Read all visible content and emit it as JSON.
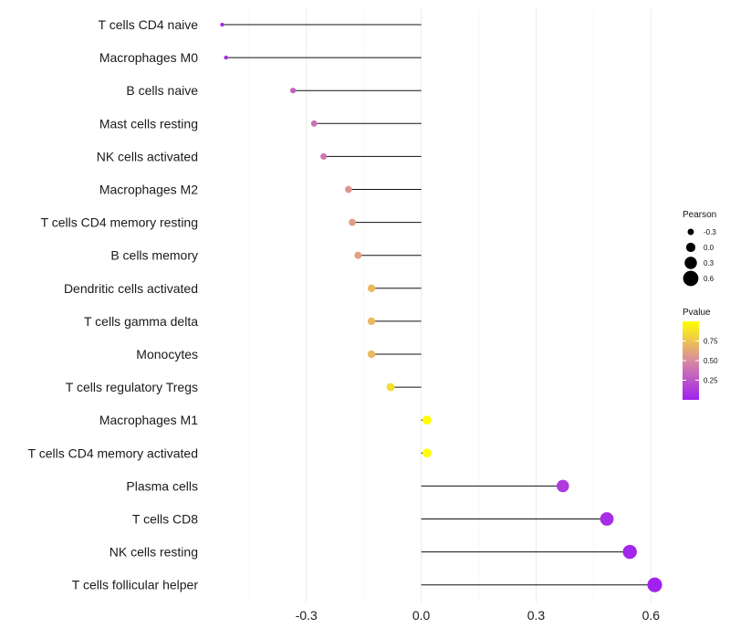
{
  "chart_data": {
    "type": "lollipop",
    "categories": [
      "T cells CD4 naive",
      "Macrophages M0",
      "B cells naive",
      "Mast cells resting",
      "NK cells activated",
      "Macrophages M2",
      "T cells CD4 memory resting",
      "B cells memory",
      "Dendritic cells activated",
      "T cells gamma delta",
      "Monocytes",
      "T cells regulatory  Tregs ",
      "Macrophages M1",
      "T cells CD4 memory activated",
      "Plasma cells",
      "T cells CD8",
      "NK cells resting",
      "T cells follicular helper"
    ],
    "pearson": [
      -0.52,
      -0.51,
      -0.335,
      -0.28,
      -0.255,
      -0.19,
      -0.18,
      -0.165,
      -0.13,
      -0.13,
      -0.13,
      -0.08,
      0.015,
      0.015,
      0.37,
      0.485,
      0.545,
      0.61
    ],
    "pvalue": [
      0.03,
      0.05,
      0.3,
      0.38,
      0.4,
      0.55,
      0.58,
      0.6,
      0.7,
      0.7,
      0.7,
      0.85,
      0.99,
      0.99,
      0.12,
      0.06,
      0.03,
      0.01
    ],
    "x_ticks": [
      -0.3,
      0.0,
      0.3,
      0.6
    ],
    "x_tick_labels": [
      "-0.3",
      "0.0",
      "0.3",
      "0.6"
    ],
    "xlim": [
      -0.545,
      0.635
    ],
    "legend_size": {
      "title": "Pearson",
      "values": [
        -0.3,
        0.0,
        0.3,
        0.6
      ],
      "labels": [
        "-0.3",
        "0.0",
        "0.3",
        "0.6"
      ]
    },
    "legend_color": {
      "title": "Pvalue",
      "ticks": [
        0.25,
        0.5,
        0.75
      ],
      "tick_labels": [
        "0.25",
        "0.50",
        "0.75"
      ],
      "range": [
        0.0,
        1.0
      ],
      "low_color": "#a020f0",
      "high_color": "#ffff00"
    }
  }
}
